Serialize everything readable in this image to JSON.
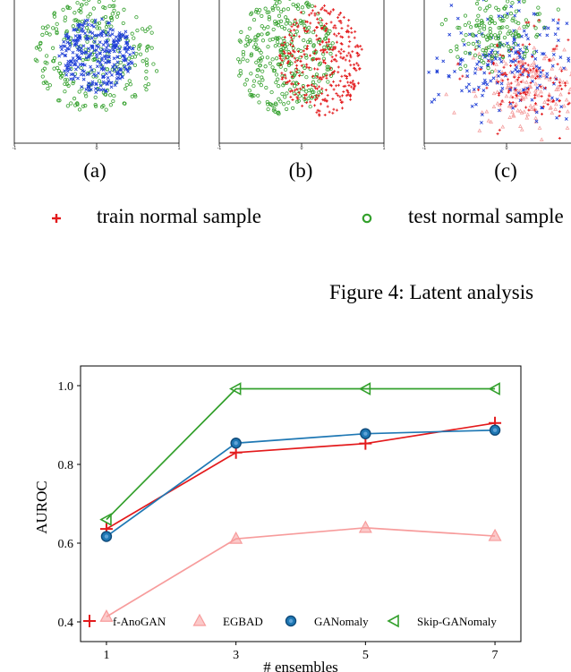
{
  "figure_top": {
    "panels": [
      {
        "label": "(a)",
        "xticks": [
          "-1",
          "0",
          "1"
        ]
      },
      {
        "label": "(b)",
        "xticks": [
          "-1",
          "0",
          "1"
        ]
      },
      {
        "label": "(c)",
        "xticks": [
          "-1",
          "0"
        ]
      }
    ],
    "legend": {
      "train_label": "train normal sample",
      "test_label": "test normal sample",
      "train_color": "#e31a1c",
      "test_color": "#33a02c"
    },
    "caption": "Figure 4: Latent analysis"
  },
  "chart_data": {
    "type": "line",
    "x": [
      1,
      3,
      5,
      7
    ],
    "xlabel": "# ensembles",
    "ylabel": "AUROC",
    "xlim": [
      0.6,
      7.4
    ],
    "ylim": [
      0.35,
      1.05
    ],
    "yticks": [
      0.4,
      0.6,
      0.8,
      1.0
    ],
    "ytick_labels": [
      "0.4",
      "0.6",
      "0.8",
      "1.0"
    ],
    "xtick_labels": [
      "1",
      "3",
      "5",
      "7"
    ],
    "legend_position": "bottom",
    "series": [
      {
        "name": "f-AnoGAN",
        "values": [
          0.636,
          0.83,
          0.853,
          0.905
        ],
        "color": "#e31a1c",
        "marker": "plus"
      },
      {
        "name": "EGBAD",
        "values": [
          0.413,
          0.611,
          0.639,
          0.618
        ],
        "color": "#f79c9c",
        "marker": "triangle-up"
      },
      {
        "name": "GANomaly",
        "values": [
          0.617,
          0.854,
          0.878,
          0.887
        ],
        "color": "#1f78b4",
        "marker": "circle"
      },
      {
        "name": "Skip-GANomaly",
        "values": [
          0.66,
          0.992,
          0.992,
          0.992
        ],
        "color": "#33a02c",
        "marker": "triangle-left"
      }
    ]
  }
}
